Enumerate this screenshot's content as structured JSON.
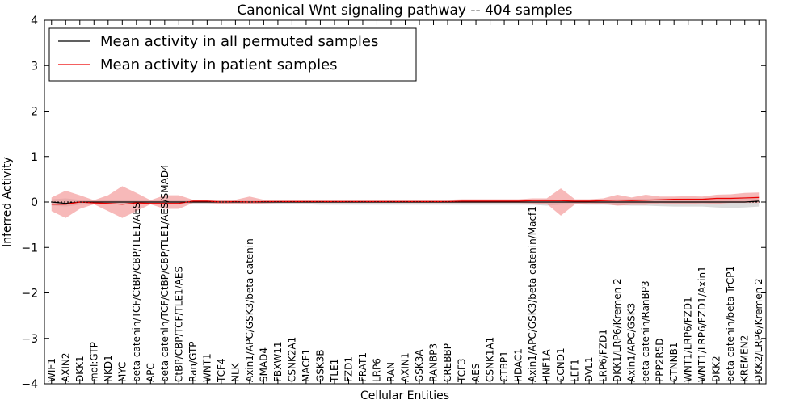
{
  "chart_data": {
    "type": "line",
    "title": "Canonical Wnt signaling pathway -- 404 samples",
    "xlabel": "Cellular Entities",
    "ylabel": "Inferred Activity",
    "ylim": [
      -4,
      4
    ],
    "yticks": [
      -4,
      -3,
      -2,
      -1,
      0,
      1,
      2,
      3,
      4
    ],
    "ytick_labels": [
      "−4",
      "−3",
      "−2",
      "−1",
      "0",
      "1",
      "2",
      "3",
      "4"
    ],
    "grid": false,
    "legend_position": "top-left",
    "categories": [
      "WIF1",
      "AXIN2",
      "DKK1",
      "mol:GTP",
      "NKD1",
      "MYC",
      "beta catenin/TCF/CtBP/CBP/TLE1/AES",
      "APC",
      "beta catenin/TCF/CtBP/CBP/TLE1/AES/SMAD4",
      "CtBP/CBP/TCF/TLE1/AES",
      "Ran/GTP",
      "WNT1",
      "TCF4",
      "NLK",
      "Axin1/APC/GSK3/beta catenin",
      "SMAD4",
      "FBXW11",
      "CSNK2A1",
      "MACF1",
      "GSK3B",
      "TLE1",
      "FZD1",
      "FRAT1",
      "LRP6",
      "RAN",
      "AXIN1",
      "GSK3A",
      "RANBP3",
      "CREBBP",
      "TCF3",
      "AES",
      "CSNK1A1",
      "CTBP1",
      "HDAC1",
      "Axin1/APC/GSK3/beta catenin/Macf1",
      "HNF1A",
      "CCND1",
      "LEF1",
      "DVL1",
      "LRP6/FZD1",
      "DKK1/LRP6/Kremen 2",
      "Axin1/APC/GSK3",
      "beta catenin/RanBP3",
      "PPP2R5D",
      "CTNNB1",
      "WNT1/LRP6/FZD1",
      "WNT1/LRP6/FZD1/Axin1",
      "DKK2",
      "beta catenin/beta TrCP1",
      "KREMEN2",
      "DKK2/LRP6/Kremen 2"
    ],
    "series": [
      {
        "name": "Mean activity in all permuted samples",
        "color": "#000000",
        "values": [
          0.0,
          -0.03,
          0.0,
          0.0,
          0.0,
          0.0,
          0.0,
          0.0,
          0.0,
          0.0,
          0.0,
          0.0,
          0.0,
          0.0,
          0.0,
          0.0,
          0.0,
          0.0,
          0.0,
          0.0,
          0.0,
          0.0,
          0.0,
          0.0,
          0.0,
          0.0,
          0.0,
          0.0,
          0.0,
          0.0,
          0.0,
          0.0,
          0.0,
          0.0,
          0.0,
          0.0,
          0.0,
          0.0,
          0.0,
          0.0,
          0.0,
          0.0,
          0.0,
          0.0,
          0.0,
          0.0,
          0.0,
          0.0,
          0.0,
          0.0,
          0.02
        ],
        "band_lower": [
          -0.08,
          -0.1,
          -0.06,
          -0.05,
          -0.05,
          -0.05,
          -0.05,
          -0.05,
          -0.05,
          -0.05,
          -0.05,
          -0.05,
          -0.05,
          -0.05,
          -0.05,
          -0.05,
          -0.05,
          -0.05,
          -0.05,
          -0.06,
          -0.06,
          -0.06,
          -0.06,
          -0.06,
          -0.06,
          -0.06,
          -0.06,
          -0.06,
          -0.06,
          -0.06,
          -0.06,
          -0.06,
          -0.06,
          -0.06,
          -0.06,
          -0.08,
          -0.06,
          -0.05,
          -0.06,
          -0.06,
          -0.07,
          -0.08,
          -0.08,
          -0.09,
          -0.1,
          -0.1,
          -0.1,
          -0.12,
          -0.13,
          -0.12,
          -0.1
        ],
        "band_upper": [
          0.06,
          0.08,
          0.05,
          0.04,
          0.04,
          0.04,
          0.04,
          0.04,
          0.04,
          0.04,
          0.04,
          0.04,
          0.04,
          0.04,
          0.04,
          0.04,
          0.04,
          0.04,
          0.04,
          0.05,
          0.05,
          0.05,
          0.05,
          0.05,
          0.05,
          0.05,
          0.05,
          0.05,
          0.05,
          0.05,
          0.05,
          0.05,
          0.05,
          0.05,
          0.05,
          0.06,
          0.05,
          0.05,
          0.05,
          0.05,
          0.06,
          0.07,
          0.07,
          0.08,
          0.08,
          0.09,
          0.09,
          0.1,
          0.1,
          0.11,
          0.12
        ],
        "band_color": "#b0b0b0"
      },
      {
        "name": "Mean activity in patient samples",
        "color": "#ee0000",
        "values": [
          -0.05,
          -0.05,
          0.0,
          -0.02,
          -0.03,
          -0.05,
          -0.02,
          -0.03,
          -0.03,
          -0.03,
          0.02,
          0.02,
          0.0,
          0.01,
          0.0,
          0.01,
          0.01,
          0.01,
          0.01,
          0.01,
          0.01,
          0.01,
          0.01,
          0.01,
          0.01,
          0.01,
          0.01,
          0.01,
          0.01,
          0.02,
          0.02,
          0.02,
          0.02,
          0.02,
          0.03,
          0.03,
          0.03,
          0.02,
          0.02,
          0.03,
          0.04,
          0.03,
          0.04,
          0.05,
          0.06,
          0.06,
          0.06,
          0.08,
          0.08,
          0.09,
          0.1
        ],
        "band_lower": [
          -0.2,
          -0.35,
          -0.15,
          -0.05,
          -0.2,
          -0.35,
          -0.2,
          -0.05,
          -0.15,
          -0.15,
          -0.02,
          -0.02,
          -0.04,
          -0.03,
          -0.04,
          -0.03,
          -0.02,
          -0.02,
          -0.02,
          -0.02,
          -0.02,
          -0.02,
          -0.02,
          -0.02,
          -0.02,
          -0.02,
          -0.02,
          -0.02,
          -0.02,
          -0.02,
          -0.02,
          -0.02,
          -0.02,
          -0.02,
          -0.03,
          -0.04,
          -0.3,
          -0.05,
          -0.03,
          -0.04,
          -0.08,
          -0.06,
          -0.06,
          -0.03,
          -0.04,
          -0.04,
          -0.03,
          -0.04,
          -0.02,
          -0.02,
          -0.02
        ],
        "band_upper": [
          0.1,
          0.25,
          0.15,
          0.04,
          0.15,
          0.35,
          0.2,
          0.04,
          0.15,
          0.15,
          0.05,
          0.05,
          0.05,
          0.05,
          0.12,
          0.05,
          0.05,
          0.05,
          0.05,
          0.05,
          0.05,
          0.05,
          0.05,
          0.05,
          0.05,
          0.05,
          0.05,
          0.05,
          0.05,
          0.06,
          0.06,
          0.06,
          0.06,
          0.06,
          0.08,
          0.08,
          0.3,
          0.06,
          0.06,
          0.08,
          0.16,
          0.1,
          0.16,
          0.12,
          0.12,
          0.13,
          0.12,
          0.16,
          0.17,
          0.2,
          0.21
        ],
        "band_color": "#f28b8b"
      }
    ]
  }
}
